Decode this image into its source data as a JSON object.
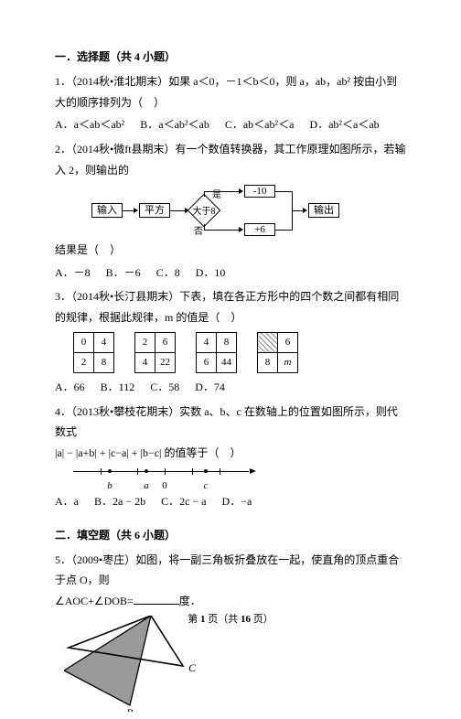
{
  "sec1": {
    "title": "一．选择题（共 4 小题）"
  },
  "q1": {
    "text": "1．（2014秋•淮北期末）如果 a＜0，－1＜b＜0，则 a，ab，ab² 按由小到大的顺序排列为（　）",
    "A": "A．a＜ab＜ab²",
    "B": "B．a＜ab²＜ab",
    "C": "C．ab＜ab²＜a",
    "D": "D．ab²＜a＜ab"
  },
  "q2": {
    "text": "2．（2014秋•微ft县期末）有一个数值转换器，其工作原理如图所示，若输入 2，则输出的",
    "flow": {
      "in": "输入",
      "sq": "平方",
      "cond": "大于8",
      "m10": "-10",
      "p6": "+6",
      "out": "输出",
      "yes": "是",
      "no": "否"
    },
    "result": "结果是（　）",
    "A": "A．－8",
    "B": "B．－6",
    "C": "C．8",
    "D": "D．10"
  },
  "q3": {
    "text": "3．（2014秋•长汀县期末）下表，填在各正方形中的四个数之间都有相同的规律，根据此规律，m 的值是（　）",
    "t1": [
      [
        "0",
        "4"
      ],
      [
        "2",
        "8"
      ]
    ],
    "t2": [
      [
        "2",
        "6"
      ],
      [
        "4",
        "22"
      ]
    ],
    "t3": [
      [
        "4",
        "8"
      ],
      [
        "6",
        "44"
      ]
    ],
    "t4": [
      [
        "",
        "6"
      ],
      [
        "8",
        "m"
      ]
    ],
    "A": "A．66",
    "B": "B．112",
    "C": "C．58",
    "D": "D．74"
  },
  "q4": {
    "text": "4．（2013秋•攀枝花期末）实数 a、b、c 在数轴上的位置如图所示，则代数式",
    "expr": "|a| − |a+b| + |c−a| + |b−c| 的值等于（　）",
    "nline": {
      "ticks": [
        30,
        70,
        100,
        130,
        160
      ],
      "points": {
        "b": 40,
        "a": 80,
        "zero": 100,
        "c": 145
      },
      "labels": {
        "b": "b",
        "a": "a",
        "zero": "0",
        "c": "c"
      }
    },
    "A": "A．a",
    "B": "B．2a − 2b",
    "C": "C．2c − a",
    "D": "D．−a"
  },
  "sec2": {
    "title": "二．填空题（共 6 小题）"
  },
  "q5": {
    "text": "5．（2009•枣庄）如图，将一副三角板折叠放在一起，使直角的顶点重合于点 O，则",
    "expr_pre": "∠AOC+∠DOB=",
    "expr_suf": "度．",
    "fig": {
      "O": [
        95,
        0
      ],
      "A": [
        5,
        35
      ],
      "D": [
        0,
        60
      ],
      "B": [
        72,
        98
      ],
      "C": [
        130,
        55
      ],
      "fill": "#9a9a9a",
      "labels": {
        "O": "O",
        "A": "A",
        "B": "B",
        "C": "C",
        "D": "D"
      }
    }
  },
  "footer": {
    "pre": "第 ",
    "page": "1",
    "mid": " 页（共 ",
    "total": "16",
    "suf": " 页）"
  }
}
